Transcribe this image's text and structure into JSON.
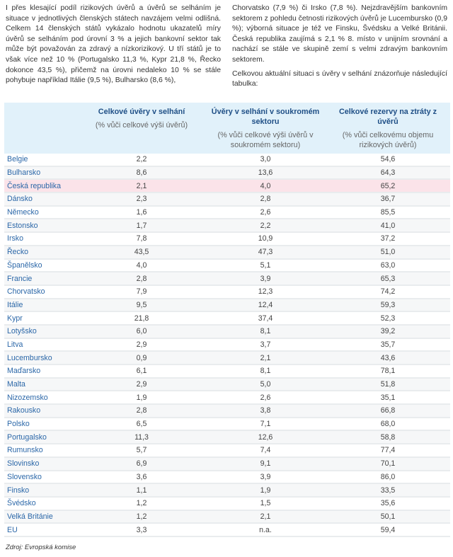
{
  "text_left": "I přes klesající podíl rizikových úvěrů a úvěrů se selháním je situace v jednotlivých členských státech navzájem velmi odlišná. Celkem 14 členských států vykázalo hodnotu ukazatelů míry úvěrů se selháním pod úrovní 3 % a jejich bankovní sektor tak může být považován za zdravý a nízkorizikový. U tří států je to však více než 10 % (Portugalsko 11,3 %, Kypr 21,8 %, Řecko dokonce 43,5 %), přičemž na úrovni nedaleko 10 % se stále pohybuje například Itálie (9,5 %), Bulharsko (8,6 %),",
  "text_right_p1": "Chorvatsko (7,9 %) či Irsko (7,8 %). Nejzdravějším bankovním sektorem z pohledu četnosti rizikových úvěrů je Lucembursko (0,9 %); výborná situace je též ve Finsku, Švédsku a Velké Británii. Česká republika zaujímá s 2,1 % 8. místo v unijním srovnání a nachází se stále ve skupině zemí s velmi zdravým bankovním sektorem.",
  "text_right_p2": "Celkovou aktuální situaci s úvěry v selhání znázorňuje následující tabulka:",
  "table": {
    "headers": [
      {
        "title": "Celkové úvěry v selhání",
        "sub": "(% vůči celkové výši úvěrů)"
      },
      {
        "title": "Úvěry v selhání v soukromém sektoru",
        "sub": "(% vůči celkové výši úvěrů v soukromém sektoru)"
      },
      {
        "title": "Celkové rezervy na ztráty z úvěrů",
        "sub": "(% vůči celkovému objemu rizikových úvěrů)"
      }
    ],
    "highlight_color": "#fbe3e9",
    "rows": [
      [
        "Belgie",
        "2,2",
        "3,0",
        "54,6"
      ],
      [
        "Bulharsko",
        "8,6",
        "13,6",
        "64,3"
      ],
      [
        "Česká republika",
        "2,1",
        "4,0",
        "65,2"
      ],
      [
        "Dánsko",
        "2,3",
        "2,8",
        "36,7"
      ],
      [
        "Německo",
        "1,6",
        "2,6",
        "85,5"
      ],
      [
        "Estonsko",
        "1,7",
        "2,2",
        "41,0"
      ],
      [
        "Irsko",
        "7,8",
        "10,9",
        "37,2"
      ],
      [
        "Řecko",
        "43,5",
        "47,3",
        "51,0"
      ],
      [
        "Španělsko",
        "4,0",
        "5,1",
        "63,0"
      ],
      [
        "Francie",
        "2,8",
        "3,9",
        "65,3"
      ],
      [
        "Chorvatsko",
        "7,9",
        "12,3",
        "74,2"
      ],
      [
        "Itálie",
        "9,5",
        "12,4",
        "59,3"
      ],
      [
        "Kypr",
        "21,8",
        "37,4",
        "52,3"
      ],
      [
        "Lotyšsko",
        "6,0",
        "8,1",
        "39,2"
      ],
      [
        "Litva",
        "2,9",
        "3,7",
        "35,7"
      ],
      [
        "Lucembursko",
        "0,9",
        "2,1",
        "43,6"
      ],
      [
        "Maďarsko",
        "6,1",
        "8,1",
        "78,1"
      ],
      [
        "Malta",
        "2,9",
        "5,0",
        "51,8"
      ],
      [
        "Nizozemsko",
        "1,9",
        "2,6",
        "35,1"
      ],
      [
        "Rakousko",
        "2,8",
        "3,8",
        "66,8"
      ],
      [
        "Polsko",
        "6,5",
        "7,1",
        "68,0"
      ],
      [
        "Portugalsko",
        "11,3",
        "12,6",
        "58,8"
      ],
      [
        "Rumunsko",
        "5,7",
        "7,4",
        "77,4"
      ],
      [
        "Slovinsko",
        "6,9",
        "9,1",
        "70,1"
      ],
      [
        "Slovensko",
        "3,6",
        "3,9",
        "86,0"
      ],
      [
        "Finsko",
        "1,1",
        "1,9",
        "33,5"
      ],
      [
        "Švédsko",
        "1,2",
        "1,5",
        "35,6"
      ],
      [
        "Velká Británie",
        "1,2",
        "2,1",
        "50,1"
      ],
      [
        "EU",
        "3,3",
        "n.a.",
        "59,4"
      ]
    ]
  },
  "source": "Zdroj: Evropská komise"
}
